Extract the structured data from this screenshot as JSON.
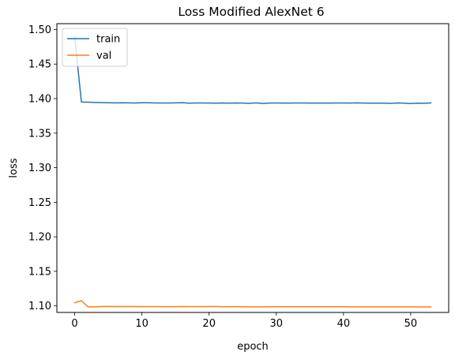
{
  "chart_data": {
    "type": "line",
    "title": "Loss Modified AlexNet 6",
    "xlabel": "epoch",
    "ylabel": "loss",
    "xlim": [
      -2.65,
      55.65
    ],
    "ylim": [
      1.0905,
      1.5085
    ],
    "xticks": [
      0,
      10,
      20,
      30,
      40,
      50
    ],
    "yticks": [
      1.1,
      1.15,
      1.2,
      1.25,
      1.3,
      1.35,
      1.4,
      1.45,
      1.5
    ],
    "ytick_labels": [
      "1.10",
      "1.15",
      "1.20",
      "1.25",
      "1.30",
      "1.35",
      "1.40",
      "1.45",
      "1.50"
    ],
    "grid": false,
    "legend": "upper-left",
    "x": [
      0,
      1,
      2,
      3,
      4,
      5,
      6,
      7,
      8,
      9,
      10,
      11,
      12,
      13,
      14,
      15,
      16,
      17,
      18,
      19,
      20,
      21,
      22,
      23,
      24,
      25,
      26,
      27,
      28,
      29,
      30,
      31,
      32,
      33,
      34,
      35,
      36,
      37,
      38,
      39,
      40,
      41,
      42,
      43,
      44,
      45,
      46,
      47,
      48,
      49,
      50,
      51,
      52,
      53
    ],
    "series": [
      {
        "name": "train",
        "color": "#1f77b4",
        "values": [
          1.49,
          1.395,
          1.3948,
          1.3945,
          1.3943,
          1.394,
          1.3938,
          1.394,
          1.3938,
          1.3937,
          1.394,
          1.394,
          1.3937,
          1.3937,
          1.3937,
          1.3938,
          1.3941,
          1.3935,
          1.3937,
          1.3937,
          1.3936,
          1.3935,
          1.3937,
          1.3935,
          1.3937,
          1.3936,
          1.3931,
          1.3938,
          1.393,
          1.3936,
          1.3937,
          1.3936,
          1.3936,
          1.3937,
          1.3937,
          1.3936,
          1.3936,
          1.3936,
          1.3936,
          1.3937,
          1.3937,
          1.3936,
          1.3939,
          1.3936,
          1.3934,
          1.3935,
          1.3935,
          1.3932,
          1.3937,
          1.3935,
          1.3929,
          1.3935,
          1.3933,
          1.3938
        ]
      },
      {
        "name": "val",
        "color": "#ff7f0e",
        "values": [
          1.1045,
          1.1075,
          1.0985,
          1.0987,
          1.099,
          1.0992,
          1.0991,
          1.0991,
          1.099,
          1.099,
          1.0989,
          1.0989,
          1.0989,
          1.0989,
          1.0988,
          1.0989,
          1.0991,
          1.0989,
          1.0989,
          1.0989,
          1.099,
          1.099,
          1.0988,
          1.0988,
          1.0989,
          1.0988,
          1.0987,
          1.0987,
          1.0987,
          1.0988,
          1.0988,
          1.0988,
          1.0988,
          1.0988,
          1.0988,
          1.0988,
          1.0988,
          1.0988,
          1.0988,
          1.0988,
          1.0988,
          1.0987,
          1.0987,
          1.0987,
          1.0987,
          1.0987,
          1.0987,
          1.0986,
          1.0986,
          1.0986,
          1.0986,
          1.0985,
          1.0985,
          1.0985
        ]
      }
    ]
  }
}
